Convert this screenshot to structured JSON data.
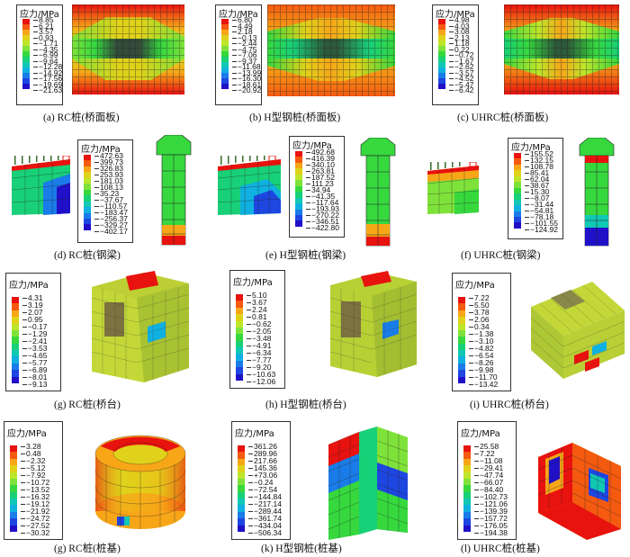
{
  "legend_title": "应力/MPa",
  "scale_colors": [
    "#e8120e",
    "#f45a10",
    "#f7a618",
    "#e0d21a",
    "#bde62a",
    "#7fe23a",
    "#36d83e",
    "#18d078",
    "#10c8b4",
    "#10b0e0",
    "#1a7ce8",
    "#1e46e0",
    "#2010c8"
  ],
  "panels": [
    {
      "caption": "(a)   RC桩(桥面板)",
      "values": [
        "8.85",
        "6.21",
        "3.57",
        "0.93",
        "−1.71",
        "−4.35",
        "−6.99",
        "−9.64",
        "−12.28",
        "−14.92",
        "−17.56",
        "−19.69",
        "−21.63"
      ]
    },
    {
      "caption": "(b)   H型钢桩(桥面板)",
      "values": [
        "6.80",
        "4.49",
        "2.18",
        "−0.13",
        "−2.44",
        "−4.75",
        "−7.06",
        "−9.37",
        "−11.68",
        "−13.99",
        "−16.30",
        "−18.61",
        "−20.92"
      ]
    },
    {
      "caption": "(c)   UHRC桩(桥面板)",
      "values": [
        "4.98",
        "4.03",
        "3.08",
        "2.13",
        "1.18",
        "0.22",
        "−0.72",
        "−1.67",
        "−2.62",
        "−3.57",
        "−4.52",
        "−5.47",
        "−6.42"
      ]
    },
    {
      "caption": "(d)   RC桩(钢梁)",
      "values": [
        "472.63",
        "399.73",
        "326.83",
        "253.93",
        "181.03",
        "108.13",
        "35.23",
        "−37.67",
        "−110.57",
        "−183.47",
        "−256.37",
        "−329.27",
        "−402.17"
      ]
    },
    {
      "caption": "(e)   H型钢桩(钢梁)",
      "values": [
        "492.68",
        "416.39",
        "340.10",
        "263.81",
        "187.52",
        "111.23",
        "34.94",
        "−41.35",
        "−117.64",
        "−193.93",
        "−270.22",
        "−346.51",
        "−422.80"
      ]
    },
    {
      "caption": "(f)   UHRC桩(钢梁)",
      "values": [
        "155.52",
        "132.15",
        "108.78",
        "85.41",
        "62.04",
        "38.67",
        "15.30",
        "−8.07",
        "−31.44",
        "−54.81",
        "−78.18",
        "−101.55",
        "−124.92"
      ]
    },
    {
      "caption": "(g)   RC桩(桥台)",
      "values": [
        "4.31",
        "3.19",
        "2.07",
        "0.95",
        "−0.17",
        "−1.29",
        "−2.41",
        "−3.53",
        "−4.65",
        "−5.77",
        "−6.89",
        "−8.01",
        "−9.13"
      ]
    },
    {
      "caption": "(h)   H型钢桩(桥台)",
      "values": [
        "5.10",
        "3.67",
        "2.24",
        "0.81",
        "−0.62",
        "−2.05",
        "−3.48",
        "−4.91",
        "−6.34",
        "−7.77",
        "−9.20",
        "−10.63",
        "−12.06"
      ]
    },
    {
      "caption": "(i)   UHRC桩(桥台)",
      "values": [
        "7.22",
        "5.50",
        "3.78",
        "2.06",
        "0.34",
        "−1.38",
        "−3.10",
        "−4.82",
        "−6.54",
        "−8.26",
        "−9.98",
        "−11.70",
        "−13.42"
      ]
    },
    {
      "caption": "(g)   RC桩(桩基)",
      "values": [
        "3.28",
        "0.48",
        "−2.32",
        "−5.12",
        "−7.92",
        "−10.72",
        "−13.52",
        "−16.32",
        "−19.12",
        "−21.92",
        "−24.72",
        "−27.52",
        "−30.32"
      ]
    },
    {
      "caption": "(k)   H型钢桩(桩基)",
      "values": [
        "361.26",
        "289.96",
        "217.66",
        "145.36",
        "+73.06",
        "−0.24",
        "−72.54",
        "−144.84",
        "−217.14",
        "−289.44",
        "−361.74",
        "−434.04",
        "−506.34"
      ]
    },
    {
      "caption": "(l)   UHRC桩(桩基)",
      "values": [
        "25.58",
        "7.22",
        "−11.08",
        "−29.41",
        "−47.74",
        "−66.07",
        "−84.40",
        "−102.73",
        "−121.06",
        "−139.39",
        "−157.72",
        "−176.05",
        "−194.38"
      ]
    }
  ]
}
